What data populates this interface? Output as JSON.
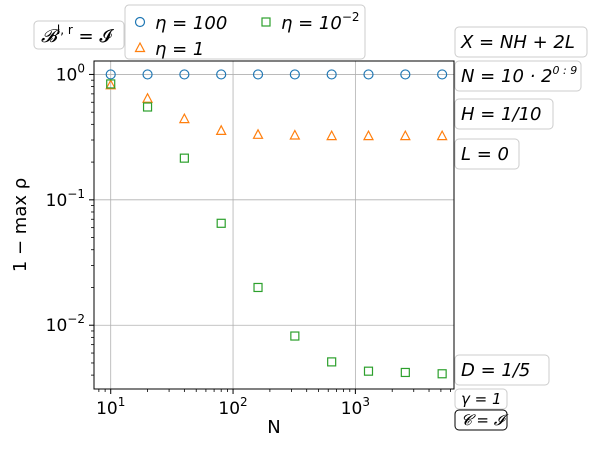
{
  "chart_data": {
    "type": "scatter",
    "title": "",
    "xlabel": "N",
    "ylabel": "1 − max ρ",
    "x_scale": "log",
    "y_scale": "log",
    "xlim": [
      7.3,
      6400
    ],
    "ylim": [
      0.0031,
      1.28
    ],
    "grid": true,
    "x_ticks": [
      {
        "value": 10,
        "base": "10",
        "exp": "1"
      },
      {
        "value": 100,
        "base": "10",
        "exp": "2"
      },
      {
        "value": 1000,
        "base": "10",
        "exp": "3"
      }
    ],
    "y_ticks": [
      {
        "value": 1,
        "base": "10",
        "exp": "0"
      },
      {
        "value": 0.1,
        "base": "10",
        "exp": "−1"
      },
      {
        "value": 0.01,
        "base": "10",
        "exp": "−2"
      }
    ],
    "x": [
      10,
      20,
      40,
      80,
      160,
      320,
      640,
      1280,
      2560,
      5120
    ],
    "series": [
      {
        "name": "η = 100",
        "label_base": "η = 100",
        "label_exp": "",
        "marker": "circle",
        "color": "#1f77b4",
        "values": [
          1.0,
          1.0,
          1.0,
          1.0,
          1.0,
          1.0,
          1.0,
          1.0,
          1.0,
          1.0
        ]
      },
      {
        "name": "η = 1",
        "label_base": "η = 1",
        "label_exp": "",
        "marker": "triangle",
        "color": "#ff7f0e",
        "values": [
          0.82,
          0.64,
          0.44,
          0.355,
          0.33,
          0.326,
          0.322,
          0.322,
          0.322,
          0.322
        ]
      },
      {
        "name": "η = 10−2",
        "label_base": "η = 10",
        "label_exp": "−2",
        "marker": "square",
        "color": "#2ca02c",
        "values": [
          0.84,
          0.55,
          0.215,
          0.065,
          0.02,
          0.0082,
          0.0051,
          0.0043,
          0.0042,
          0.0041
        ]
      }
    ],
    "legend_position": "top, outside"
  },
  "annotations": {
    "top_left": {
      "base": "𝓑",
      "sup": "l, r",
      "rest": " = 𝓘"
    },
    "right": [
      {
        "base": "X = NH + 2L",
        "sup": ""
      },
      {
        "base": "N = 10 · 2",
        "sup": "0 : 9"
      },
      {
        "base": "H = 1/10",
        "sup": ""
      },
      {
        "base": "L = 0",
        "sup": ""
      },
      {
        "base": "D = 1/5",
        "sup": ""
      },
      {
        "base": "γ = 1",
        "sup": ""
      },
      {
        "base": "𝓒 = 𝓘",
        "sup": ""
      }
    ]
  }
}
